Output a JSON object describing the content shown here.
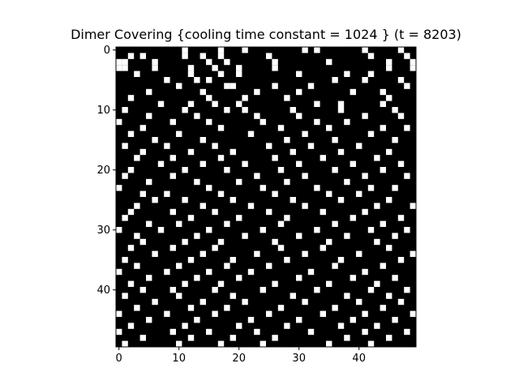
{
  "chart_data": {
    "type": "heatmap",
    "title": "Dimer Covering {cooling time constant = 1024 } (t = 8203)",
    "xlabel": "",
    "ylabel": "",
    "grid_size": 50,
    "xlim": [
      -0.5,
      49.5
    ],
    "ylim": [
      49.5,
      -0.5
    ],
    "x_ticks": [
      0,
      10,
      20,
      30,
      40
    ],
    "y_ticks": [
      0,
      10,
      20,
      30,
      40
    ],
    "x_tick_labels": [
      "0",
      "10",
      "20",
      "30",
      "40"
    ],
    "y_tick_labels": [
      "0",
      "10",
      "20",
      "30",
      "40"
    ],
    "colormap": {
      "0": "#000000",
      "1": "#ffffff"
    },
    "grid": false,
    "white_cells_approx": [
      [
        0,
        11
      ],
      [
        0,
        17
      ],
      [
        0,
        21
      ],
      [
        0,
        31
      ],
      [
        0,
        33
      ],
      [
        0,
        41
      ],
      [
        0,
        47
      ],
      [
        1,
        2
      ],
      [
        1,
        4
      ],
      [
        1,
        11
      ],
      [
        1,
        14
      ],
      [
        1,
        17
      ],
      [
        1,
        25
      ],
      [
        1,
        42
      ],
      [
        1,
        48
      ],
      [
        2,
        0
      ],
      [
        2,
        1
      ],
      [
        2,
        6
      ],
      [
        2,
        15
      ],
      [
        2,
        18
      ],
      [
        2,
        26
      ],
      [
        2,
        35
      ],
      [
        2,
        45
      ],
      [
        2,
        49
      ],
      [
        3,
        0
      ],
      [
        3,
        1
      ],
      [
        3,
        6
      ],
      [
        3,
        12
      ],
      [
        3,
        16
      ],
      [
        3,
        20
      ],
      [
        3,
        26
      ],
      [
        3,
        45
      ],
      [
        3,
        49
      ],
      [
        4,
        3
      ],
      [
        4,
        12
      ],
      [
        4,
        17
      ],
      [
        4,
        20
      ],
      [
        4,
        30
      ],
      [
        4,
        38
      ],
      [
        4,
        42
      ],
      [
        5,
        8
      ],
      [
        5,
        13
      ],
      [
        5,
        15
      ],
      [
        5,
        36
      ],
      [
        5,
        41
      ],
      [
        5,
        47
      ],
      [
        6,
        10
      ],
      [
        6,
        18
      ],
      [
        6,
        19
      ],
      [
        6,
        26
      ],
      [
        6,
        32
      ],
      [
        6,
        48
      ],
      [
        7,
        5
      ],
      [
        7,
        14
      ],
      [
        7,
        23
      ],
      [
        7,
        30
      ],
      [
        7,
        39
      ],
      [
        7,
        44
      ],
      [
        8,
        2
      ],
      [
        8,
        15
      ],
      [
        8,
        21
      ],
      [
        8,
        28
      ],
      [
        8,
        45
      ],
      [
        9,
        7
      ],
      [
        9,
        12
      ],
      [
        9,
        16
      ],
      [
        9,
        20
      ],
      [
        9,
        33
      ],
      [
        9,
        37
      ],
      [
        9,
        44
      ],
      [
        10,
        1
      ],
      [
        10,
        11
      ],
      [
        10,
        18
      ],
      [
        10,
        21
      ],
      [
        10,
        29
      ],
      [
        10,
        37
      ],
      [
        10,
        46
      ],
      [
        11,
        5
      ],
      [
        11,
        13
      ],
      [
        11,
        23
      ],
      [
        11,
        30
      ],
      [
        11,
        41
      ],
      [
        11,
        47
      ],
      [
        12,
        0
      ],
      [
        12,
        9
      ],
      [
        12,
        15
      ],
      [
        12,
        24
      ],
      [
        12,
        33
      ],
      [
        12,
        38
      ],
      [
        13,
        4
      ],
      [
        13,
        17
      ],
      [
        13,
        27
      ],
      [
        13,
        35
      ],
      [
        13,
        44
      ],
      [
        13,
        48
      ],
      [
        14,
        2
      ],
      [
        14,
        10
      ],
      [
        14,
        22
      ],
      [
        14,
        31
      ],
      [
        14,
        42
      ],
      [
        15,
        6
      ],
      [
        15,
        14
      ],
      [
        15,
        28
      ],
      [
        15,
        36
      ],
      [
        15,
        46
      ],
      [
        16,
        1
      ],
      [
        16,
        8
      ],
      [
        16,
        16
      ],
      [
        16,
        25
      ],
      [
        16,
        32
      ],
      [
        16,
        40
      ],
      [
        17,
        4
      ],
      [
        17,
        12
      ],
      [
        17,
        19
      ],
      [
        17,
        29
      ],
      [
        17,
        37
      ],
      [
        17,
        45
      ],
      [
        18,
        3
      ],
      [
        18,
        9
      ],
      [
        18,
        17
      ],
      [
        18,
        26
      ],
      [
        18,
        34
      ],
      [
        18,
        43
      ],
      [
        19,
        7
      ],
      [
        19,
        14
      ],
      [
        19,
        21
      ],
      [
        19,
        30
      ],
      [
        19,
        39
      ],
      [
        19,
        47
      ],
      [
        20,
        2
      ],
      [
        20,
        11
      ],
      [
        20,
        18
      ],
      [
        20,
        27
      ],
      [
        20,
        36
      ],
      [
        20,
        44
      ],
      [
        21,
        1
      ],
      [
        21,
        9
      ],
      [
        21,
        23
      ],
      [
        21,
        31
      ],
      [
        21,
        41
      ],
      [
        21,
        48
      ],
      [
        22,
        5
      ],
      [
        22,
        13
      ],
      [
        22,
        20
      ],
      [
        22,
        28
      ],
      [
        22,
        38
      ],
      [
        23,
        0
      ],
      [
        23,
        15
      ],
      [
        23,
        24
      ],
      [
        23,
        33
      ],
      [
        23,
        42
      ],
      [
        23,
        46
      ],
      [
        24,
        4
      ],
      [
        24,
        8
      ],
      [
        24,
        17
      ],
      [
        24,
        26
      ],
      [
        24,
        35
      ],
      [
        24,
        40
      ],
      [
        25,
        6
      ],
      [
        25,
        11
      ],
      [
        25,
        19
      ],
      [
        25,
        29
      ],
      [
        25,
        37
      ],
      [
        25,
        45
      ],
      [
        26,
        3
      ],
      [
        26,
        14
      ],
      [
        26,
        22
      ],
      [
        26,
        31
      ],
      [
        26,
        43
      ],
      [
        26,
        49
      ],
      [
        27,
        2
      ],
      [
        27,
        9
      ],
      [
        27,
        16
      ],
      [
        27,
        25
      ],
      [
        27,
        34
      ],
      [
        27,
        41
      ],
      [
        28,
        1
      ],
      [
        28,
        12
      ],
      [
        28,
        20
      ],
      [
        28,
        28
      ],
      [
        28,
        39
      ],
      [
        28,
        47
      ],
      [
        29,
        5
      ],
      [
        29,
        10
      ],
      [
        29,
        18
      ],
      [
        29,
        27
      ],
      [
        29,
        36
      ],
      [
        29,
        44
      ],
      [
        30,
        0
      ],
      [
        30,
        7
      ],
      [
        30,
        15
      ],
      [
        30,
        24
      ],
      [
        30,
        33
      ],
      [
        30,
        42
      ],
      [
        30,
        48
      ],
      [
        31,
        3
      ],
      [
        31,
        13
      ],
      [
        31,
        21
      ],
      [
        31,
        30
      ],
      [
        31,
        38
      ],
      [
        31,
        46
      ],
      [
        32,
        4
      ],
      [
        32,
        11
      ],
      [
        32,
        17
      ],
      [
        32,
        26
      ],
      [
        32,
        35
      ],
      [
        32,
        43
      ],
      [
        33,
        2
      ],
      [
        33,
        9
      ],
      [
        33,
        16
      ],
      [
        33,
        27
      ],
      [
        33,
        34
      ],
      [
        33,
        45
      ],
      [
        34,
        6
      ],
      [
        34,
        14
      ],
      [
        34,
        23
      ],
      [
        34,
        31
      ],
      [
        34,
        40
      ],
      [
        34,
        49
      ],
      [
        35,
        1
      ],
      [
        35,
        12
      ],
      [
        35,
        19
      ],
      [
        35,
        28
      ],
      [
        35,
        37
      ],
      [
        35,
        47
      ],
      [
        36,
        3
      ],
      [
        36,
        10
      ],
      [
        36,
        18
      ],
      [
        36,
        25
      ],
      [
        36,
        36
      ],
      [
        36,
        44
      ],
      [
        37,
        0
      ],
      [
        37,
        8
      ],
      [
        37,
        15
      ],
      [
        37,
        22
      ],
      [
        37,
        32
      ],
      [
        37,
        41
      ],
      [
        38,
        5
      ],
      [
        38,
        13
      ],
      [
        38,
        20
      ],
      [
        38,
        30
      ],
      [
        38,
        39
      ],
      [
        38,
        46
      ],
      [
        39,
        2
      ],
      [
        39,
        11
      ],
      [
        39,
        17
      ],
      [
        39,
        26
      ],
      [
        39,
        35
      ],
      [
        39,
        43
      ],
      [
        40,
        4
      ],
      [
        40,
        9
      ],
      [
        40,
        16
      ],
      [
        40,
        24
      ],
      [
        40,
        33
      ],
      [
        40,
        42
      ],
      [
        40,
        48
      ],
      [
        41,
        1
      ],
      [
        41,
        10
      ],
      [
        41,
        19
      ],
      [
        41,
        29
      ],
      [
        41,
        38
      ],
      [
        41,
        45
      ],
      [
        42,
        6
      ],
      [
        42,
        14
      ],
      [
        42,
        21
      ],
      [
        42,
        31
      ],
      [
        42,
        40
      ],
      [
        42,
        47
      ],
      [
        43,
        3
      ],
      [
        43,
        12
      ],
      [
        43,
        18
      ],
      [
        43,
        27
      ],
      [
        43,
        36
      ],
      [
        43,
        44
      ],
      [
        44,
        0
      ],
      [
        44,
        8
      ],
      [
        44,
        16
      ],
      [
        44,
        25
      ],
      [
        44,
        34
      ],
      [
        44,
        41
      ],
      [
        44,
        49
      ],
      [
        45,
        5
      ],
      [
        45,
        13
      ],
      [
        45,
        22
      ],
      [
        45,
        30
      ],
      [
        45,
        39
      ],
      [
        45,
        46
      ],
      [
        46,
        2
      ],
      [
        46,
        11
      ],
      [
        46,
        20
      ],
      [
        46,
        28
      ],
      [
        46,
        37
      ],
      [
        46,
        43
      ],
      [
        47,
        0
      ],
      [
        47,
        9
      ],
      [
        47,
        15
      ],
      [
        47,
        23
      ],
      [
        47,
        32
      ],
      [
        47,
        41
      ],
      [
        47,
        48
      ],
      [
        48,
        4
      ],
      [
        48,
        12
      ],
      [
        48,
        19
      ],
      [
        48,
        26
      ],
      [
        48,
        38
      ],
      [
        48,
        45
      ],
      [
        49,
        1
      ],
      [
        49,
        10
      ],
      [
        49,
        17
      ],
      [
        49,
        24
      ],
      [
        49,
        35
      ],
      [
        49,
        42
      ]
    ]
  }
}
